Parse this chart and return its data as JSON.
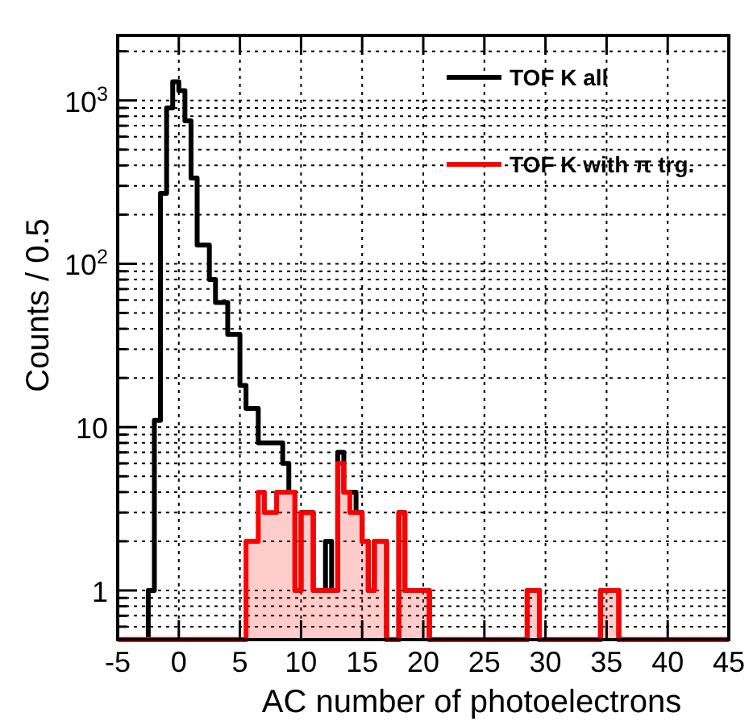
{
  "chart_data": {
    "type": "histogram",
    "xlabel": "AC number of photoelectrons",
    "ylabel": "Counts / 0.5",
    "bins": [
      -5,
      -4.5,
      -4,
      -3.5,
      -3,
      -2.5,
      -2,
      -1.5,
      -1,
      -0.5,
      0,
      0.5,
      1,
      1.5,
      2,
      2.5,
      3,
      3.5,
      4,
      4.5,
      5,
      5.5,
      6,
      6.5,
      7,
      7.5,
      8,
      8.5,
      9,
      9.5,
      10,
      10.5,
      11,
      11.5,
      12,
      12.5,
      13,
      13.5,
      14,
      14.5,
      15,
      15.5,
      16,
      16.5,
      17,
      17.5,
      18,
      18.5,
      19,
      19.5,
      20,
      20.5,
      21,
      21.5,
      22,
      22.5,
      23,
      23.5,
      24,
      24.5,
      25,
      25.5,
      26,
      26.5,
      27,
      27.5,
      28,
      28.5,
      29,
      29.5,
      30,
      30.5,
      31,
      31.5,
      32,
      32.5,
      33,
      33.5,
      34,
      34.5,
      35,
      35.5,
      36,
      36.5,
      37,
      37.5,
      38,
      38.5,
      39,
      39.5,
      40,
      40.5,
      41,
      41.5,
      42,
      42.5,
      43,
      43.5,
      44,
      44.5,
      45
    ],
    "series": [
      {
        "name": "TOF K all",
        "color": "#000000",
        "values": [
          null,
          null,
          null,
          null,
          null,
          1,
          11,
          270,
          900,
          1300,
          1150,
          750,
          335,
          130,
          130,
          80,
          58,
          58,
          37,
          37,
          18,
          13,
          13,
          8,
          8,
          8,
          8,
          6,
          4,
          1,
          3,
          3,
          1,
          1,
          2,
          1,
          7,
          4,
          4,
          3,
          2,
          1,
          2,
          2,
          null,
          null,
          3,
          1,
          1,
          1,
          1,
          null,
          null,
          null,
          null,
          null,
          null,
          null,
          null,
          null,
          null,
          null,
          null,
          null,
          null,
          null,
          null,
          1,
          1,
          null,
          null,
          null,
          null,
          null,
          null,
          null,
          null,
          null,
          null,
          1,
          1,
          1,
          null,
          null,
          null,
          null,
          null,
          null,
          null,
          null,
          null,
          null,
          null,
          null,
          null,
          null,
          null,
          null,
          null,
          null
        ]
      },
      {
        "name": "TOF K with π trg.",
        "color": "#ff0000",
        "values": [
          null,
          null,
          null,
          null,
          null,
          null,
          null,
          null,
          null,
          null,
          null,
          null,
          null,
          null,
          null,
          null,
          null,
          null,
          null,
          null,
          null,
          2,
          2,
          4,
          3,
          3,
          4,
          4,
          4,
          1,
          3,
          3,
          1,
          1,
          1,
          1,
          6,
          4,
          3,
          3,
          2,
          1,
          2,
          2,
          null,
          null,
          3,
          1,
          1,
          1,
          1,
          null,
          null,
          null,
          null,
          null,
          null,
          null,
          null,
          null,
          null,
          null,
          null,
          null,
          null,
          null,
          null,
          1,
          1,
          null,
          null,
          null,
          null,
          null,
          null,
          null,
          null,
          null,
          null,
          1,
          1,
          1,
          null,
          null,
          null,
          null,
          null,
          null,
          null,
          null,
          null,
          null,
          null,
          null,
          null,
          null,
          null,
          null,
          null,
          null
        ]
      }
    ],
    "xlim": [
      -5,
      45
    ],
    "xticks": [
      -5,
      0,
      5,
      10,
      15,
      20,
      25,
      30,
      35,
      40,
      45
    ],
    "ylim": [
      0.5,
      2500
    ],
    "log": "y",
    "yticks": [
      {
        "value": 0.6,
        "label": null
      },
      {
        "value": 0.7,
        "label": null
      },
      {
        "value": 0.8,
        "label": null
      },
      {
        "value": 0.9,
        "label": null
      },
      1,
      {
        "value": 2,
        "label": null
      },
      {
        "value": 3,
        "label": null
      },
      {
        "value": 4,
        "label": null
      },
      {
        "value": 5,
        "label": null
      },
      {
        "value": 6,
        "label": null
      },
      {
        "value": 7,
        "label": null
      },
      {
        "value": 8,
        "label": null
      },
      {
        "value": 9,
        "label": null
      },
      10,
      {
        "value": 20,
        "label": null
      },
      {
        "value": 30,
        "label": null
      },
      {
        "value": 40,
        "label": null
      },
      {
        "value": 50,
        "label": null
      },
      {
        "value": 60,
        "label": null
      },
      {
        "value": 70,
        "label": null
      },
      {
        "value": 80,
        "label": null
      },
      {
        "value": 90,
        "label": null
      },
      {
        "value": 100,
        "label": "10$^{2}$"
      },
      {
        "value": 200,
        "label": null
      },
      {
        "value": 300,
        "label": null
      },
      {
        "value": 400,
        "label": null
      },
      {
        "value": 500,
        "label": null
      },
      {
        "value": 600,
        "label": null
      },
      {
        "value": 700,
        "label": null
      },
      {
        "value": 800,
        "label": null
      },
      {
        "value": 900,
        "label": null
      },
      {
        "value": 1000,
        "label": "10$^{3}$"
      },
      {
        "value": 2000,
        "label": null
      }
    ],
    "grid": true,
    "legend": "top right"
  }
}
